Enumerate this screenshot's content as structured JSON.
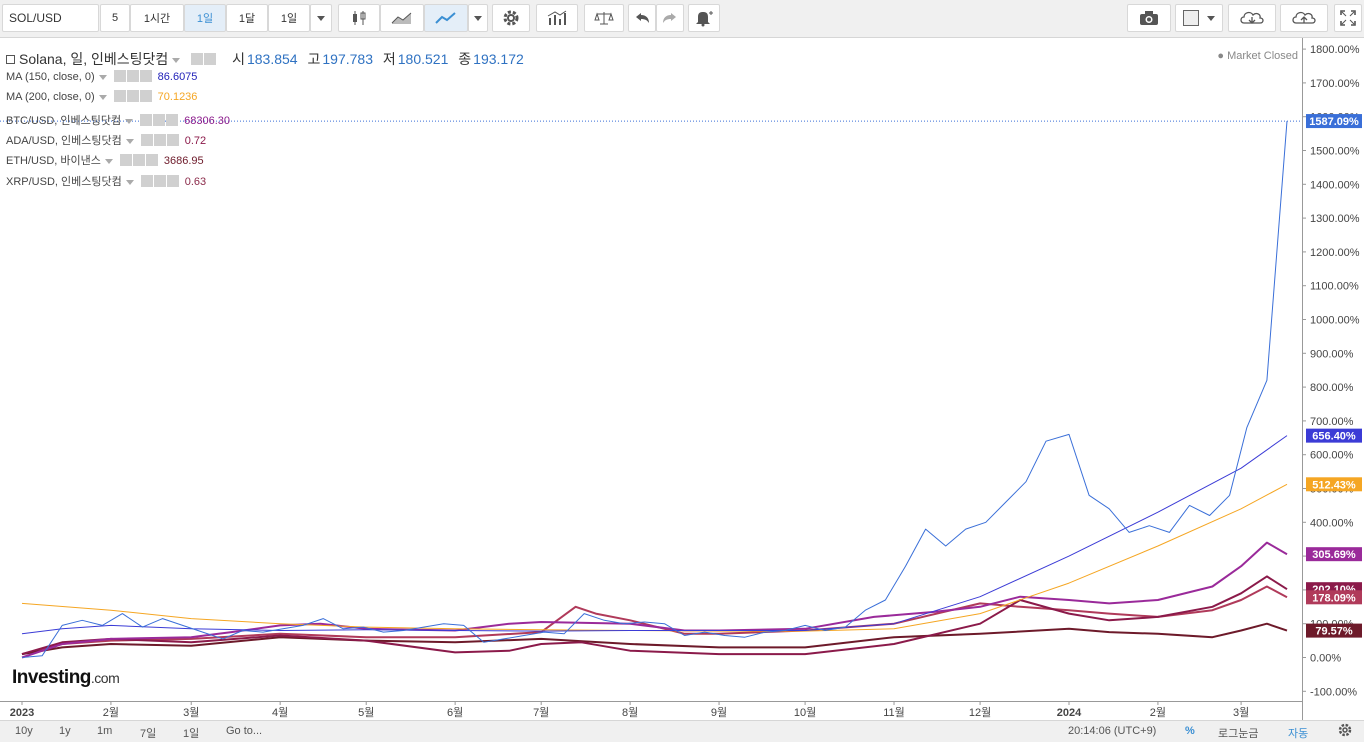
{
  "toolbar": {
    "symbol": "SOL/USD",
    "interval_items": [
      "5",
      "1시간",
      "1일",
      "1달",
      "1일"
    ],
    "active_interval": "1일"
  },
  "legend": {
    "main_title": "Solana, 일, 인베스팅닷컴",
    "ohlc": [
      {
        "k": "시",
        "v": "183.854"
      },
      {
        "k": "고",
        "v": "197.783"
      },
      {
        "k": "저",
        "v": "180.521"
      },
      {
        "k": "종",
        "v": "193.172"
      }
    ],
    "rows": [
      {
        "label": "MA (150, close, 0)",
        "value": "86.6075",
        "color": "#1f1fb8"
      },
      {
        "label": "MA (200, close, 0)",
        "value": "70.1236",
        "color": "#f5a623"
      },
      {
        "label": "BTC/USD, 인베스팅닷컴",
        "value": "68306.30",
        "color": "#8b1a8b"
      },
      {
        "label": "ADA/USD, 인베스팅닷컴",
        "value": "0.72",
        "color": "#8b1a4a"
      },
      {
        "label": "ETH/USD, 바이낸스",
        "value": "3686.95",
        "color": "#6d1a2a"
      },
      {
        "label": "XRP/USD, 인베스팅닷컴",
        "value": "0.63",
        "color": "#8b2a4a"
      }
    ]
  },
  "market_status": "Market Closed",
  "logo": {
    "main": "Investing",
    "suffix": ".com"
  },
  "bottombar": {
    "ranges": [
      "10y",
      "1y",
      "1m",
      "7일",
      "1일",
      "Go to..."
    ],
    "time": "20:14:06 (UTC+9)",
    "percent": "%",
    "log": "로그눈금",
    "auto": "자동"
  },
  "chart_data": {
    "type": "line",
    "y_unit": "%",
    "y_ticks": [
      "1800.00%",
      "1700.00%",
      "1600.00%",
      "1500.00%",
      "1400.00%",
      "1300.00%",
      "1200.00%",
      "1100.00%",
      "1000.00%",
      "900.00%",
      "800.00%",
      "700.00%",
      "600.00%",
      "500.00%",
      "400.00%",
      "300.00%",
      "200.00%",
      "100.00%",
      "0.00%",
      "-100.00%"
    ],
    "ylim": [
      -100,
      1800
    ],
    "x_labels": [
      "2023",
      "2월",
      "3월",
      "4월",
      "5월",
      "6월",
      "7월",
      "8월",
      "9월",
      "10월",
      "11월",
      "12월",
      "2024",
      "2월",
      "3월"
    ],
    "x_label_dates": [
      "2023-01-01",
      "2023-02-01",
      "2023-03-01",
      "2023-04-01",
      "2023-05-01",
      "2023-06-01",
      "2023-07-01",
      "2023-08-01",
      "2023-09-01",
      "2023-10-01",
      "2023-11-01",
      "2023-12-01",
      "2024-01-01",
      "2024-02-01",
      "2024-03-01"
    ],
    "x_range": [
      "2023-01-01",
      "2024-03-17"
    ],
    "series": [
      {
        "name": "SOL/USD",
        "color": "#3a6fd8",
        "width": 1,
        "last_label": "1587.09%",
        "last_value": 1587.09,
        "dotted_line": true,
        "points": [
          [
            "2023-01-01",
            0
          ],
          [
            "2023-01-08",
            5
          ],
          [
            "2023-01-15",
            95
          ],
          [
            "2023-01-22",
            110
          ],
          [
            "2023-01-29",
            95
          ],
          [
            "2023-02-05",
            130
          ],
          [
            "2023-02-12",
            90
          ],
          [
            "2023-02-19",
            115
          ],
          [
            "2023-02-26",
            95
          ],
          [
            "2023-03-05",
            75
          ],
          [
            "2023-03-12",
            55
          ],
          [
            "2023-03-19",
            80
          ],
          [
            "2023-03-26",
            75
          ],
          [
            "2023-04-02",
            85
          ],
          [
            "2023-04-09",
            95
          ],
          [
            "2023-04-16",
            115
          ],
          [
            "2023-04-23",
            85
          ],
          [
            "2023-04-30",
            90
          ],
          [
            "2023-05-07",
            75
          ],
          [
            "2023-05-14",
            80
          ],
          [
            "2023-05-21",
            90
          ],
          [
            "2023-05-28",
            100
          ],
          [
            "2023-06-04",
            95
          ],
          [
            "2023-06-11",
            45
          ],
          [
            "2023-06-18",
            55
          ],
          [
            "2023-06-25",
            65
          ],
          [
            "2023-07-02",
            75
          ],
          [
            "2023-07-09",
            70
          ],
          [
            "2023-07-16",
            130
          ],
          [
            "2023-07-23",
            110
          ],
          [
            "2023-07-30",
            100
          ],
          [
            "2023-08-06",
            105
          ],
          [
            "2023-08-13",
            100
          ],
          [
            "2023-08-20",
            65
          ],
          [
            "2023-08-27",
            75
          ],
          [
            "2023-09-03",
            65
          ],
          [
            "2023-09-10",
            60
          ],
          [
            "2023-09-17",
            75
          ],
          [
            "2023-09-24",
            80
          ],
          [
            "2023-10-01",
            95
          ],
          [
            "2023-10-08",
            80
          ],
          [
            "2023-10-15",
            90
          ],
          [
            "2023-10-22",
            140
          ],
          [
            "2023-10-29",
            170
          ],
          [
            "2023-11-05",
            270
          ],
          [
            "2023-11-12",
            380
          ],
          [
            "2023-11-19",
            330
          ],
          [
            "2023-11-26",
            380
          ],
          [
            "2023-12-03",
            400
          ],
          [
            "2023-12-10",
            460
          ],
          [
            "2023-12-17",
            520
          ],
          [
            "2023-12-24",
            640
          ],
          [
            "2024-01-01",
            660
          ],
          [
            "2024-01-08",
            480
          ],
          [
            "2024-01-15",
            440
          ],
          [
            "2024-01-22",
            370
          ],
          [
            "2024-01-29",
            390
          ],
          [
            "2024-02-05",
            370
          ],
          [
            "2024-02-12",
            450
          ],
          [
            "2024-02-19",
            420
          ],
          [
            "2024-02-26",
            480
          ],
          [
            "2024-03-03",
            680
          ],
          [
            "2024-03-10",
            820
          ],
          [
            "2024-03-17",
            1587.09
          ]
        ]
      },
      {
        "name": "MA (150, close, 0)",
        "color": "#3b3bd6",
        "width": 1,
        "last_label": "656.40%",
        "last_value": 656.4,
        "points": [
          [
            "2023-01-01",
            70
          ],
          [
            "2023-01-15",
            85
          ],
          [
            "2023-02-01",
            95
          ],
          [
            "2023-03-01",
            85
          ],
          [
            "2023-04-01",
            80
          ],
          [
            "2023-05-01",
            82
          ],
          [
            "2023-06-01",
            80
          ],
          [
            "2023-07-01",
            78
          ],
          [
            "2023-08-01",
            80
          ],
          [
            "2023-09-01",
            80
          ],
          [
            "2023-10-01",
            80
          ],
          [
            "2023-11-01",
            100
          ],
          [
            "2023-12-01",
            180
          ],
          [
            "2024-01-01",
            300
          ],
          [
            "2024-02-01",
            430
          ],
          [
            "2024-03-01",
            560
          ],
          [
            "2024-03-17",
            656.4
          ]
        ]
      },
      {
        "name": "MA (200, close, 0)",
        "color": "#f5a623",
        "width": 1,
        "last_label": "512.43%",
        "last_value": 512.43,
        "points": [
          [
            "2023-01-01",
            160
          ],
          [
            "2023-02-01",
            140
          ],
          [
            "2023-03-01",
            115
          ],
          [
            "2023-04-01",
            100
          ],
          [
            "2023-05-01",
            90
          ],
          [
            "2023-06-01",
            85
          ],
          [
            "2023-07-01",
            82
          ],
          [
            "2023-08-01",
            80
          ],
          [
            "2023-09-01",
            78
          ],
          [
            "2023-10-01",
            78
          ],
          [
            "2023-11-01",
            85
          ],
          [
            "2023-12-01",
            130
          ],
          [
            "2024-01-01",
            220
          ],
          [
            "2024-02-01",
            330
          ],
          [
            "2024-03-01",
            440
          ],
          [
            "2024-03-17",
            512.43
          ]
        ]
      },
      {
        "name": "BTC/USD",
        "color": "#9a2a9a",
        "width": 2,
        "last_label": "305.69%",
        "last_value": 305.69,
        "points": [
          [
            "2023-01-01",
            0
          ],
          [
            "2023-01-15",
            40
          ],
          [
            "2023-02-01",
            55
          ],
          [
            "2023-03-01",
            60
          ],
          [
            "2023-03-15",
            75
          ],
          [
            "2023-04-01",
            95
          ],
          [
            "2023-04-15",
            100
          ],
          [
            "2023-05-01",
            85
          ],
          [
            "2023-06-01",
            80
          ],
          [
            "2023-06-20",
            100
          ],
          [
            "2023-07-01",
            105
          ],
          [
            "2023-08-01",
            100
          ],
          [
            "2023-08-20",
            80
          ],
          [
            "2023-09-01",
            80
          ],
          [
            "2023-10-01",
            85
          ],
          [
            "2023-10-25",
            120
          ],
          [
            "2023-11-15",
            135
          ],
          [
            "2023-12-01",
            150
          ],
          [
            "2023-12-15",
            180
          ],
          [
            "2024-01-01",
            170
          ],
          [
            "2024-01-15",
            160
          ],
          [
            "2024-02-01",
            170
          ],
          [
            "2024-02-20",
            210
          ],
          [
            "2024-03-01",
            270
          ],
          [
            "2024-03-10",
            340
          ],
          [
            "2024-03-17",
            305.69
          ]
        ]
      },
      {
        "name": "ADA/USD",
        "color": "#8b1a4a",
        "width": 2,
        "last_label": "202.10%",
        "last_value": 202.1,
        "points": [
          [
            "2023-01-01",
            10
          ],
          [
            "2023-01-15",
            45
          ],
          [
            "2023-02-01",
            55
          ],
          [
            "2023-03-01",
            45
          ],
          [
            "2023-04-01",
            65
          ],
          [
            "2023-05-01",
            50
          ],
          [
            "2023-06-01",
            15
          ],
          [
            "2023-06-20",
            20
          ],
          [
            "2023-07-01",
            40
          ],
          [
            "2023-07-15",
            45
          ],
          [
            "2023-08-01",
            20
          ],
          [
            "2023-09-01",
            10
          ],
          [
            "2023-10-01",
            10
          ],
          [
            "2023-11-01",
            40
          ],
          [
            "2023-12-01",
            100
          ],
          [
            "2023-12-15",
            170
          ],
          [
            "2024-01-01",
            130
          ],
          [
            "2024-01-15",
            110
          ],
          [
            "2024-02-01",
            120
          ],
          [
            "2024-02-20",
            150
          ],
          [
            "2024-03-01",
            190
          ],
          [
            "2024-03-10",
            240
          ],
          [
            "2024-03-17",
            202.1
          ]
        ]
      },
      {
        "name": "ETH/USD",
        "color": "#6d1a2a",
        "width": 2,
        "last_label": "79.57%",
        "last_value": 79.57,
        "points": [
          [
            "2023-01-01",
            10
          ],
          [
            "2023-01-15",
            30
          ],
          [
            "2023-02-01",
            40
          ],
          [
            "2023-03-01",
            35
          ],
          [
            "2023-04-01",
            60
          ],
          [
            "2023-05-01",
            50
          ],
          [
            "2023-06-01",
            45
          ],
          [
            "2023-07-01",
            55
          ],
          [
            "2023-08-01",
            40
          ],
          [
            "2023-09-01",
            30
          ],
          [
            "2023-10-01",
            30
          ],
          [
            "2023-11-01",
            60
          ],
          [
            "2023-12-01",
            70
          ],
          [
            "2024-01-01",
            85
          ],
          [
            "2024-01-15",
            75
          ],
          [
            "2024-02-01",
            70
          ],
          [
            "2024-02-20",
            60
          ],
          [
            "2024-03-01",
            80
          ],
          [
            "2024-03-10",
            100
          ],
          [
            "2024-03-17",
            79.57
          ]
        ]
      },
      {
        "name": "XRP/USD",
        "color": "#b03a5a",
        "width": 2,
        "last_label": "178.09%",
        "last_value": 178.09,
        "points": [
          [
            "2023-01-01",
            10
          ],
          [
            "2023-01-15",
            40
          ],
          [
            "2023-02-01",
            50
          ],
          [
            "2023-03-01",
            55
          ],
          [
            "2023-04-01",
            70
          ],
          [
            "2023-05-01",
            60
          ],
          [
            "2023-06-01",
            60
          ],
          [
            "2023-07-01",
            75
          ],
          [
            "2023-07-13",
            150
          ],
          [
            "2023-07-20",
            130
          ],
          [
            "2023-08-01",
            110
          ],
          [
            "2023-08-20",
            70
          ],
          [
            "2023-09-01",
            70
          ],
          [
            "2023-10-01",
            80
          ],
          [
            "2023-11-01",
            100
          ],
          [
            "2023-12-01",
            160
          ],
          [
            "2023-12-15",
            150
          ],
          [
            "2024-01-01",
            140
          ],
          [
            "2024-01-15",
            130
          ],
          [
            "2024-02-01",
            120
          ],
          [
            "2024-02-20",
            140
          ],
          [
            "2024-03-01",
            170
          ],
          [
            "2024-03-10",
            210
          ],
          [
            "2024-03-17",
            178.09
          ]
        ]
      }
    ]
  }
}
